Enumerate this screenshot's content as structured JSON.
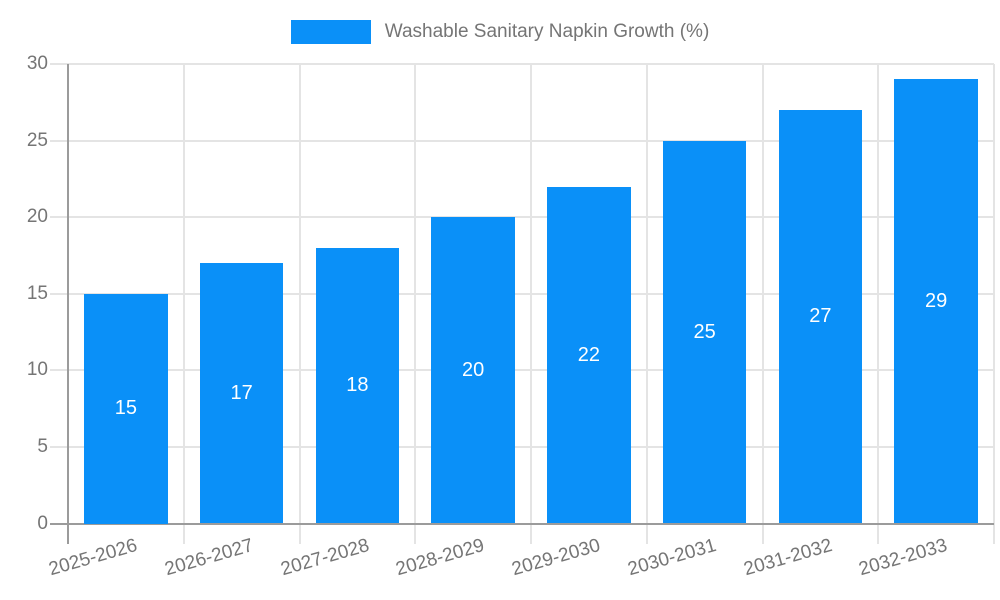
{
  "legend": {
    "label": "Washable Sanitary Napkin Growth (%)"
  },
  "chart_data": {
    "type": "bar",
    "title": "",
    "xlabel": "",
    "ylabel": "",
    "categories": [
      "2025-2026",
      "2026-2027",
      "2027-2028",
      "2028-2029",
      "2029-2030",
      "2030-2031",
      "2031-2032",
      "2032-2033"
    ],
    "values": [
      15,
      17,
      18,
      20,
      22,
      25,
      27,
      29
    ],
    "series_name": "Washable Sanitary Napkin Growth (%)",
    "ylim": [
      0,
      30
    ],
    "yticks": [
      0,
      5,
      10,
      15,
      20,
      25,
      30
    ],
    "grid": true,
    "legend_position": "top",
    "bar_labels_inside": true,
    "x_label_rotation_deg": -16,
    "colors": {
      "bar": "#0a90f8",
      "grid": "#e4e4e4",
      "axis": "#9b9b9b",
      "tick_text": "#757575",
      "bar_label_text": "#ffffff",
      "background": "#ffffff"
    }
  }
}
